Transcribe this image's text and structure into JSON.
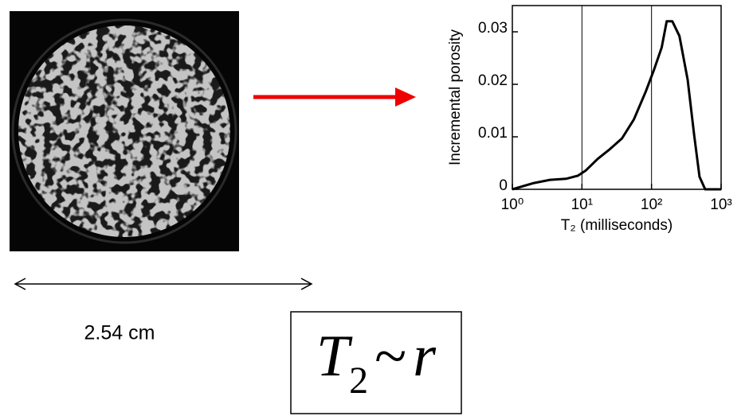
{
  "chart_data": {
    "type": "line",
    "y_label": "Incremental porosity",
    "x_label": "T₂ (milliseconds)",
    "xscale": "log",
    "xlim": [
      1,
      1000
    ],
    "xticks": [
      {
        "value": 1,
        "label": "10⁰"
      },
      {
        "value": 10,
        "label": "10¹"
      },
      {
        "value": 100,
        "label": "10²"
      },
      {
        "value": 1000,
        "label": "10³"
      }
    ],
    "ylim": [
      0,
      0.035
    ],
    "yticks": [
      0,
      0.01,
      0.02,
      0.03
    ],
    "vlines": [
      10,
      100
    ],
    "series": [
      {
        "color": "#000000",
        "x": [
          1,
          2.04,
          3.47,
          5.9,
          8.8,
          11.4,
          16.9,
          25,
          37.6,
          55.7,
          82.5,
          108,
          140,
          165,
          199,
          252,
          330,
          410,
          490,
          590,
          1000
        ],
        "values": [
          0,
          0.0012,
          0.0018,
          0.002,
          0.0026,
          0.0036,
          0.0058,
          0.0076,
          0.0097,
          0.0133,
          0.0186,
          0.0227,
          0.027,
          0.032,
          0.032,
          0.0292,
          0.0209,
          0.0103,
          0.0024,
          0,
          0
        ]
      }
    ]
  },
  "scale_label": "2.54 cm",
  "formula": {
    "symbol": "T",
    "subscript": "2",
    "operator": "~",
    "variable": "r"
  }
}
